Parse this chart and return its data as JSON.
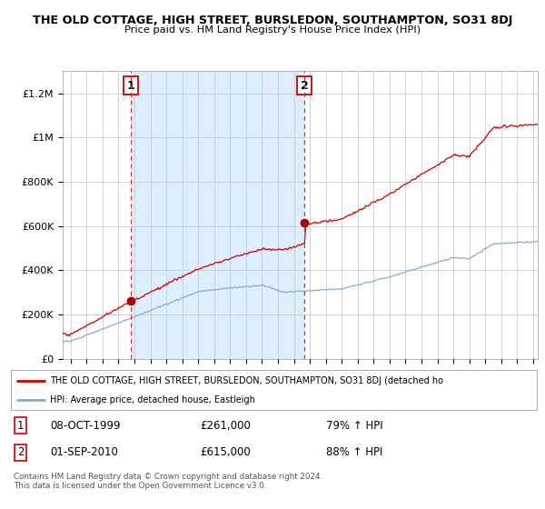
{
  "title": "THE OLD COTTAGE, HIGH STREET, BURSLEDON, SOUTHAMPTON, SO31 8DJ",
  "subtitle": "Price paid vs. HM Land Registry's House Price Index (HPI)",
  "ylabel_ticks": [
    "£0",
    "£200K",
    "£400K",
    "£600K",
    "£800K",
    "£1M",
    "£1.2M"
  ],
  "ytick_values": [
    0,
    200000,
    400000,
    600000,
    800000,
    1000000,
    1200000
  ],
  "ylim": [
    0,
    1300000
  ],
  "xlim_start": 1995.5,
  "xlim_end": 2025.3,
  "sale1_date": 1999.77,
  "sale1_price": 261000,
  "sale1_label": "1",
  "sale2_date": 2010.67,
  "sale2_price": 615000,
  "sale2_label": "2",
  "property_line_color": "#cc0000",
  "hpi_line_color": "#88aacc",
  "sale_marker_color": "#aa0000",
  "dashed_line_color": "#cc3333",
  "shade_color": "#ddeeff",
  "background_color": "#ffffff",
  "grid_color": "#cccccc",
  "legend_property": "THE OLD COTTAGE, HIGH STREET, BURSLEDON, SOUTHAMPTON, SO31 8DJ (detached ho",
  "legend_hpi": "HPI: Average price, detached house, Eastleigh",
  "table_row1_num": "1",
  "table_row1_date": "08-OCT-1999",
  "table_row1_price": "£261,000",
  "table_row1_hpi": "79% ↑ HPI",
  "table_row2_num": "2",
  "table_row2_date": "01-SEP-2010",
  "table_row2_price": "£615,000",
  "table_row2_hpi": "88% ↑ HPI",
  "footer": "Contains HM Land Registry data © Crown copyright and database right 2024.\nThis data is licensed under the Open Government Licence v3.0."
}
